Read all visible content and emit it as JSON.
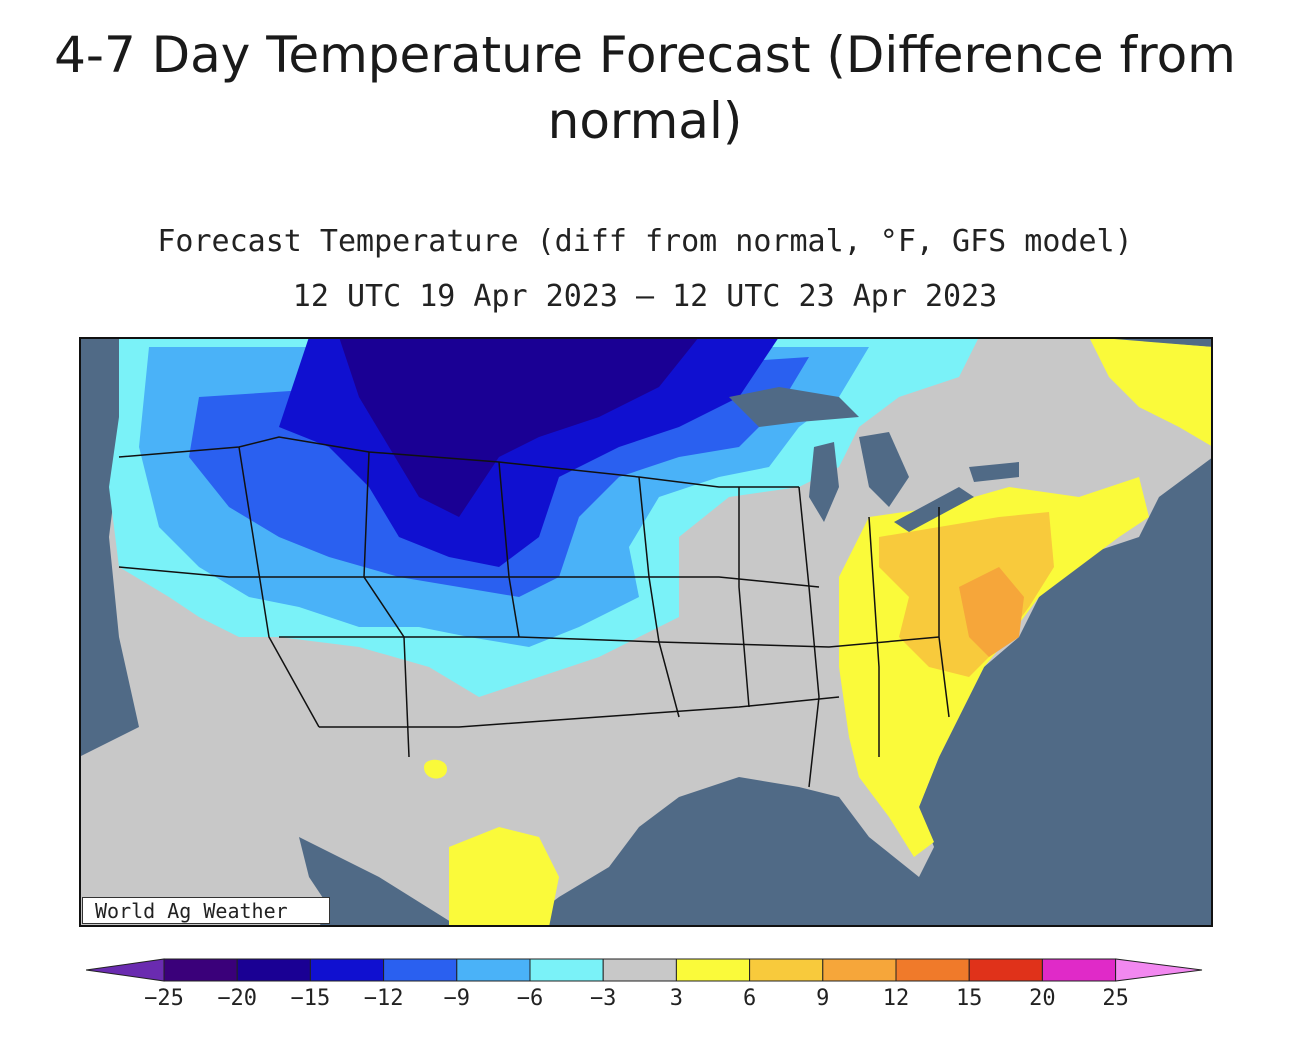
{
  "page_title": "4-7 Day Temperature Forecast (Difference from normal)",
  "map": {
    "title": "Forecast Temperature (diff from normal, °F, GFS model)",
    "subtitle": "12 UTC 19 Apr 2023 – 12 UTC 23 Apr 2023",
    "credit": "World Ag Weather",
    "ocean_color": "#506a86"
  },
  "legend": {
    "colors": [
      "#6a2bb0",
      "#3a007a",
      "#1a0094",
      "#1010d0",
      "#2a60f0",
      "#4ab2f8",
      "#7af2f8",
      "#c8c8c8",
      "#fafa3a",
      "#f8ca3c",
      "#f6a63a",
      "#f07a2a",
      "#e0321a",
      "#e02ac8",
      "#f288f0"
    ],
    "labels": [
      "−25",
      "−20",
      "−15",
      "−12",
      "−9",
      "−6",
      "−3",
      "3",
      "6",
      "9",
      "12",
      "15",
      "20",
      "25"
    ]
  }
}
